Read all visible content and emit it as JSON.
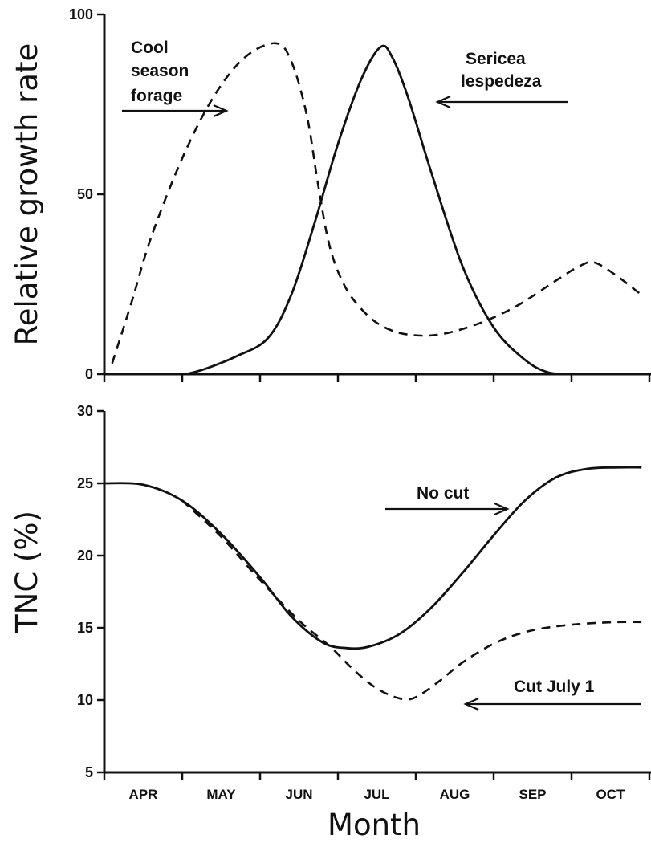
{
  "chart_data": [
    {
      "type": "line",
      "title": "",
      "ylabel": "Relative growth rate",
      "xlabel": "",
      "ylim": [
        0,
        100
      ],
      "yticks": [
        "0",
        "50",
        "100"
      ],
      "categories": [
        "APR",
        "MAY",
        "JUN",
        "JUL",
        "AUG",
        "SEP",
        "OCT"
      ],
      "series": [
        {
          "name": "Cool season forage",
          "style": "dashed",
          "points": [
            [
              0.1,
              3
            ],
            [
              0.35,
              20
            ],
            [
              0.6,
              38
            ],
            [
              1.0,
              60
            ],
            [
              1.4,
              77
            ],
            [
              1.8,
              88
            ],
            [
              2.2,
              92
            ],
            [
              2.4,
              87
            ],
            [
              2.6,
              72
            ],
            [
              2.75,
              52
            ],
            [
              2.9,
              35
            ],
            [
              3.1,
              24
            ],
            [
              3.35,
              17
            ],
            [
              3.6,
              13
            ],
            [
              3.9,
              11
            ],
            [
              4.3,
              11
            ],
            [
              4.8,
              14
            ],
            [
              5.3,
              19
            ],
            [
              5.8,
              26
            ],
            [
              6.1,
              30
            ],
            [
              6.3,
              31
            ],
            [
              6.6,
              27
            ],
            [
              6.9,
              22
            ]
          ]
        },
        {
          "name": "Sericea lespedeza",
          "style": "solid",
          "points": [
            [
              1.05,
              0
            ],
            [
              1.3,
              1.5
            ],
            [
              1.7,
              5
            ],
            [
              2.1,
              10
            ],
            [
              2.4,
              22
            ],
            [
              2.7,
              42
            ],
            [
              3.0,
              64
            ],
            [
              3.3,
              82
            ],
            [
              3.55,
              91
            ],
            [
              3.7,
              88
            ],
            [
              3.9,
              77
            ],
            [
              4.2,
              56
            ],
            [
              4.6,
              30
            ],
            [
              5.0,
              13
            ],
            [
              5.4,
              4
            ],
            [
              5.7,
              0.5
            ],
            [
              6.0,
              0
            ]
          ]
        }
      ],
      "annotations": [
        {
          "text": [
            "Cool",
            "season",
            "forage"
          ],
          "points_to": "Cool season forage"
        },
        {
          "text": [
            "Sericea",
            "lespedeza"
          ],
          "points_to": "Sericea lespedeza"
        }
      ]
    },
    {
      "type": "line",
      "title": "",
      "ylabel": "TNC (%)",
      "xlabel": "Month",
      "ylim": [
        5,
        30
      ],
      "yticks": [
        "5",
        "10",
        "15",
        "20",
        "25",
        "30"
      ],
      "categories": [
        "APR",
        "MAY",
        "JUN",
        "JUL",
        "AUG",
        "SEP",
        "OCT"
      ],
      "series": [
        {
          "name": "No cut",
          "style": "solid",
          "points": [
            [
              0.0,
              25
            ],
            [
              0.5,
              24.9
            ],
            [
              1.0,
              23.8
            ],
            [
              1.5,
              21.5
            ],
            [
              2.0,
              18.5
            ],
            [
              2.4,
              15.8
            ],
            [
              2.8,
              14.0
            ],
            [
              3.1,
              13.6
            ],
            [
              3.4,
              13.7
            ],
            [
              3.8,
              14.6
            ],
            [
              4.2,
              16.4
            ],
            [
              4.6,
              18.8
            ],
            [
              5.0,
              21.4
            ],
            [
              5.4,
              23.8
            ],
            [
              5.8,
              25.4
            ],
            [
              6.2,
              26.0
            ],
            [
              6.6,
              26.1
            ],
            [
              6.9,
              26.1
            ]
          ]
        },
        {
          "name": "Cut July 1",
          "style": "dashed",
          "points": [
            [
              1.0,
              23.8
            ],
            [
              1.5,
              21.3
            ],
            [
              2.0,
              18.3
            ],
            [
              2.5,
              15.5
            ],
            [
              2.9,
              13.7
            ],
            [
              3.2,
              12.1
            ],
            [
              3.5,
              10.8
            ],
            [
              3.8,
              10.1
            ],
            [
              4.0,
              10.2
            ],
            [
              4.3,
              11.3
            ],
            [
              4.6,
              12.6
            ],
            [
              5.0,
              13.9
            ],
            [
              5.4,
              14.7
            ],
            [
              5.8,
              15.1
            ],
            [
              6.2,
              15.3
            ],
            [
              6.6,
              15.4
            ],
            [
              6.9,
              15.4
            ]
          ]
        }
      ],
      "annotations": [
        {
          "text": [
            "No cut"
          ],
          "points_to": "No cut"
        },
        {
          "text": [
            "Cut July 1"
          ],
          "points_to": "Cut July 1"
        }
      ]
    }
  ]
}
